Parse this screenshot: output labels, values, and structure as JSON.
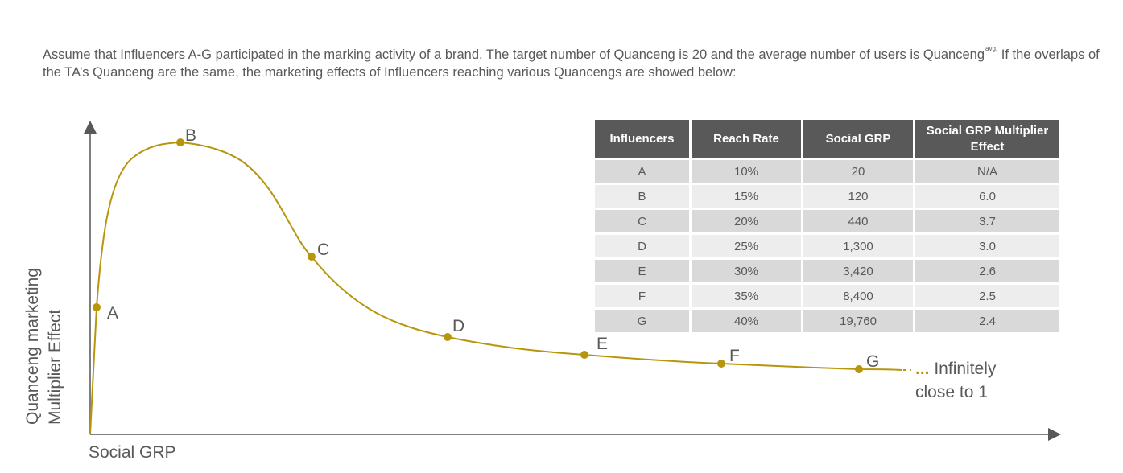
{
  "intro": {
    "part1": "Assume that Influencers A-G participated in the marking activity of a brand. The target number of Quanceng is 20 and the average number of users is Quanceng",
    "sup": "avg.",
    "part2": " If the overlaps of the TA’s Quanceng are the same, the marketing effects of Influencers reaching various Quancengs are showed below:"
  },
  "chart_data": {
    "type": "line",
    "xlabel": "Social GRP",
    "ylabel_line1": "Quanceng marketing",
    "ylabel_line2": "Multiplier Effect",
    "grid": false,
    "points": [
      "A",
      "B",
      "C",
      "D",
      "E",
      "F",
      "G"
    ],
    "annotation": [
      "... Infinitely",
      "close to 1"
    ],
    "color": "#b8960c"
  },
  "table": {
    "headers": [
      "Influencers",
      "Reach Rate",
      "Social GRP",
      "Social GRP Multiplier Effect"
    ],
    "rows": [
      [
        "A",
        "10%",
        "20",
        "N/A"
      ],
      [
        "B",
        "15%",
        "120",
        "6.0"
      ],
      [
        "C",
        "20%",
        "440",
        "3.7"
      ],
      [
        "D",
        "25%",
        "1,300",
        "3.0"
      ],
      [
        "E",
        "30%",
        "3,420",
        "2.6"
      ],
      [
        "F",
        "35%",
        "8,400",
        "2.5"
      ],
      [
        "G",
        "40%",
        "19,760",
        "2.4"
      ]
    ]
  }
}
